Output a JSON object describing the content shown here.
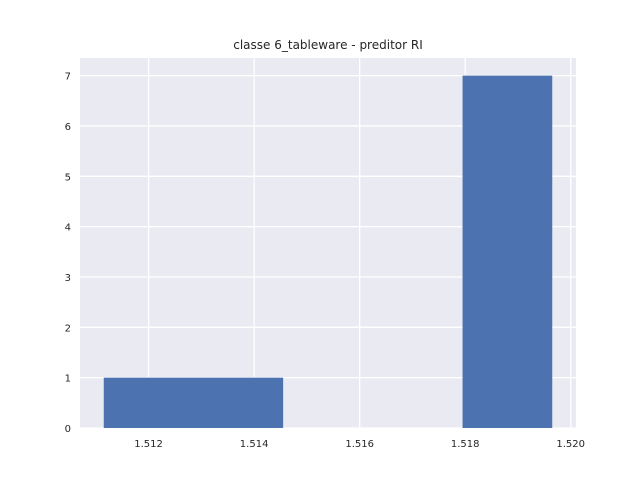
{
  "chart_data": {
    "type": "bar",
    "title": "classe 6_tableware - preditor RI",
    "xlabel": "",
    "ylabel": "",
    "xlim": [
      1.5107,
      1.5201
    ],
    "ylim": [
      0,
      7.35
    ],
    "xticks": [
      1.512,
      1.514,
      1.516,
      1.518,
      1.52
    ],
    "xtick_labels": [
      "1.512",
      "1.514",
      "1.516",
      "1.518",
      "1.520"
    ],
    "yticks": [
      0,
      1,
      2,
      3,
      4,
      5,
      6,
      7
    ],
    "ytick_labels": [
      "0",
      "1",
      "2",
      "3",
      "4",
      "5",
      "6",
      "7"
    ],
    "grid": true,
    "bins": [
      {
        "x0": 1.51115,
        "x1": 1.51455,
        "value": 1
      },
      {
        "x0": 1.51455,
        "x1": 1.51795,
        "value": 0
      },
      {
        "x0": 1.51795,
        "x1": 1.51965,
        "value": 7
      }
    ],
    "colors": {
      "bar": "#4c72b0",
      "axes_bg": "#eaeaf2",
      "grid": "#ffffff",
      "text": "#262626"
    }
  }
}
